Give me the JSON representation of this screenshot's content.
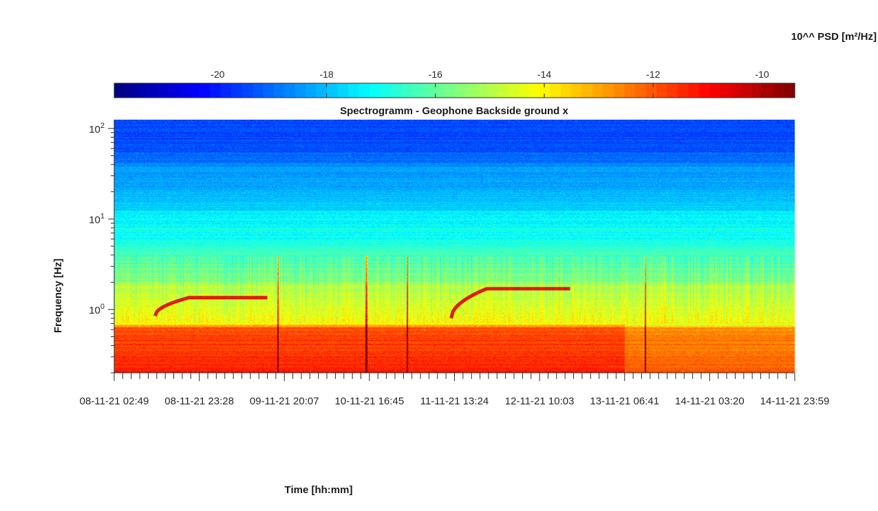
{
  "chart_data": {
    "type": "heatmap",
    "title": "Spectrogramm - Geophone Backside ground x",
    "xlabel": "Time [hh:mm]",
    "ylabel": "Frequency [Hz]",
    "y_scale": "log",
    "ylim": [
      0.2,
      125
    ],
    "y_ticks": [
      {
        "value": 1,
        "base": "10",
        "exp": "0"
      },
      {
        "value": 10,
        "base": "10",
        "exp": "1"
      },
      {
        "value": 100,
        "base": "10",
        "exp": "2"
      }
    ],
    "x_tick_labels": [
      "08-11-21  02:49",
      "08-11-21  23:28",
      "09-11-21  20:07",
      "10-11-21  16:45",
      "11-11-21  13:24",
      "12-11-21  10:03",
      "13-11-21  06:41",
      "14-11-21  03:20",
      "14-11-21  23:59"
    ],
    "colorbar": {
      "label": "10^^ PSD [m²/Hz]",
      "tick_labels": [
        "-20",
        "-18",
        "-16",
        "-14",
        "-12",
        "-10"
      ],
      "tick_values": [
        -20,
        -18,
        -16,
        -14,
        -12,
        -10
      ],
      "range": [
        -21.9,
        -9.4
      ],
      "colormap": "jet"
    },
    "features": [
      {
        "kind": "ridge",
        "x_range": [
          0.06,
          0.225
        ],
        "freq_start": 0.85,
        "freq_plateau": 1.35
      },
      {
        "kind": "ridge",
        "x_range": [
          0.495,
          0.67
        ],
        "freq_start": 0.8,
        "freq_plateau": 1.7
      }
    ]
  }
}
